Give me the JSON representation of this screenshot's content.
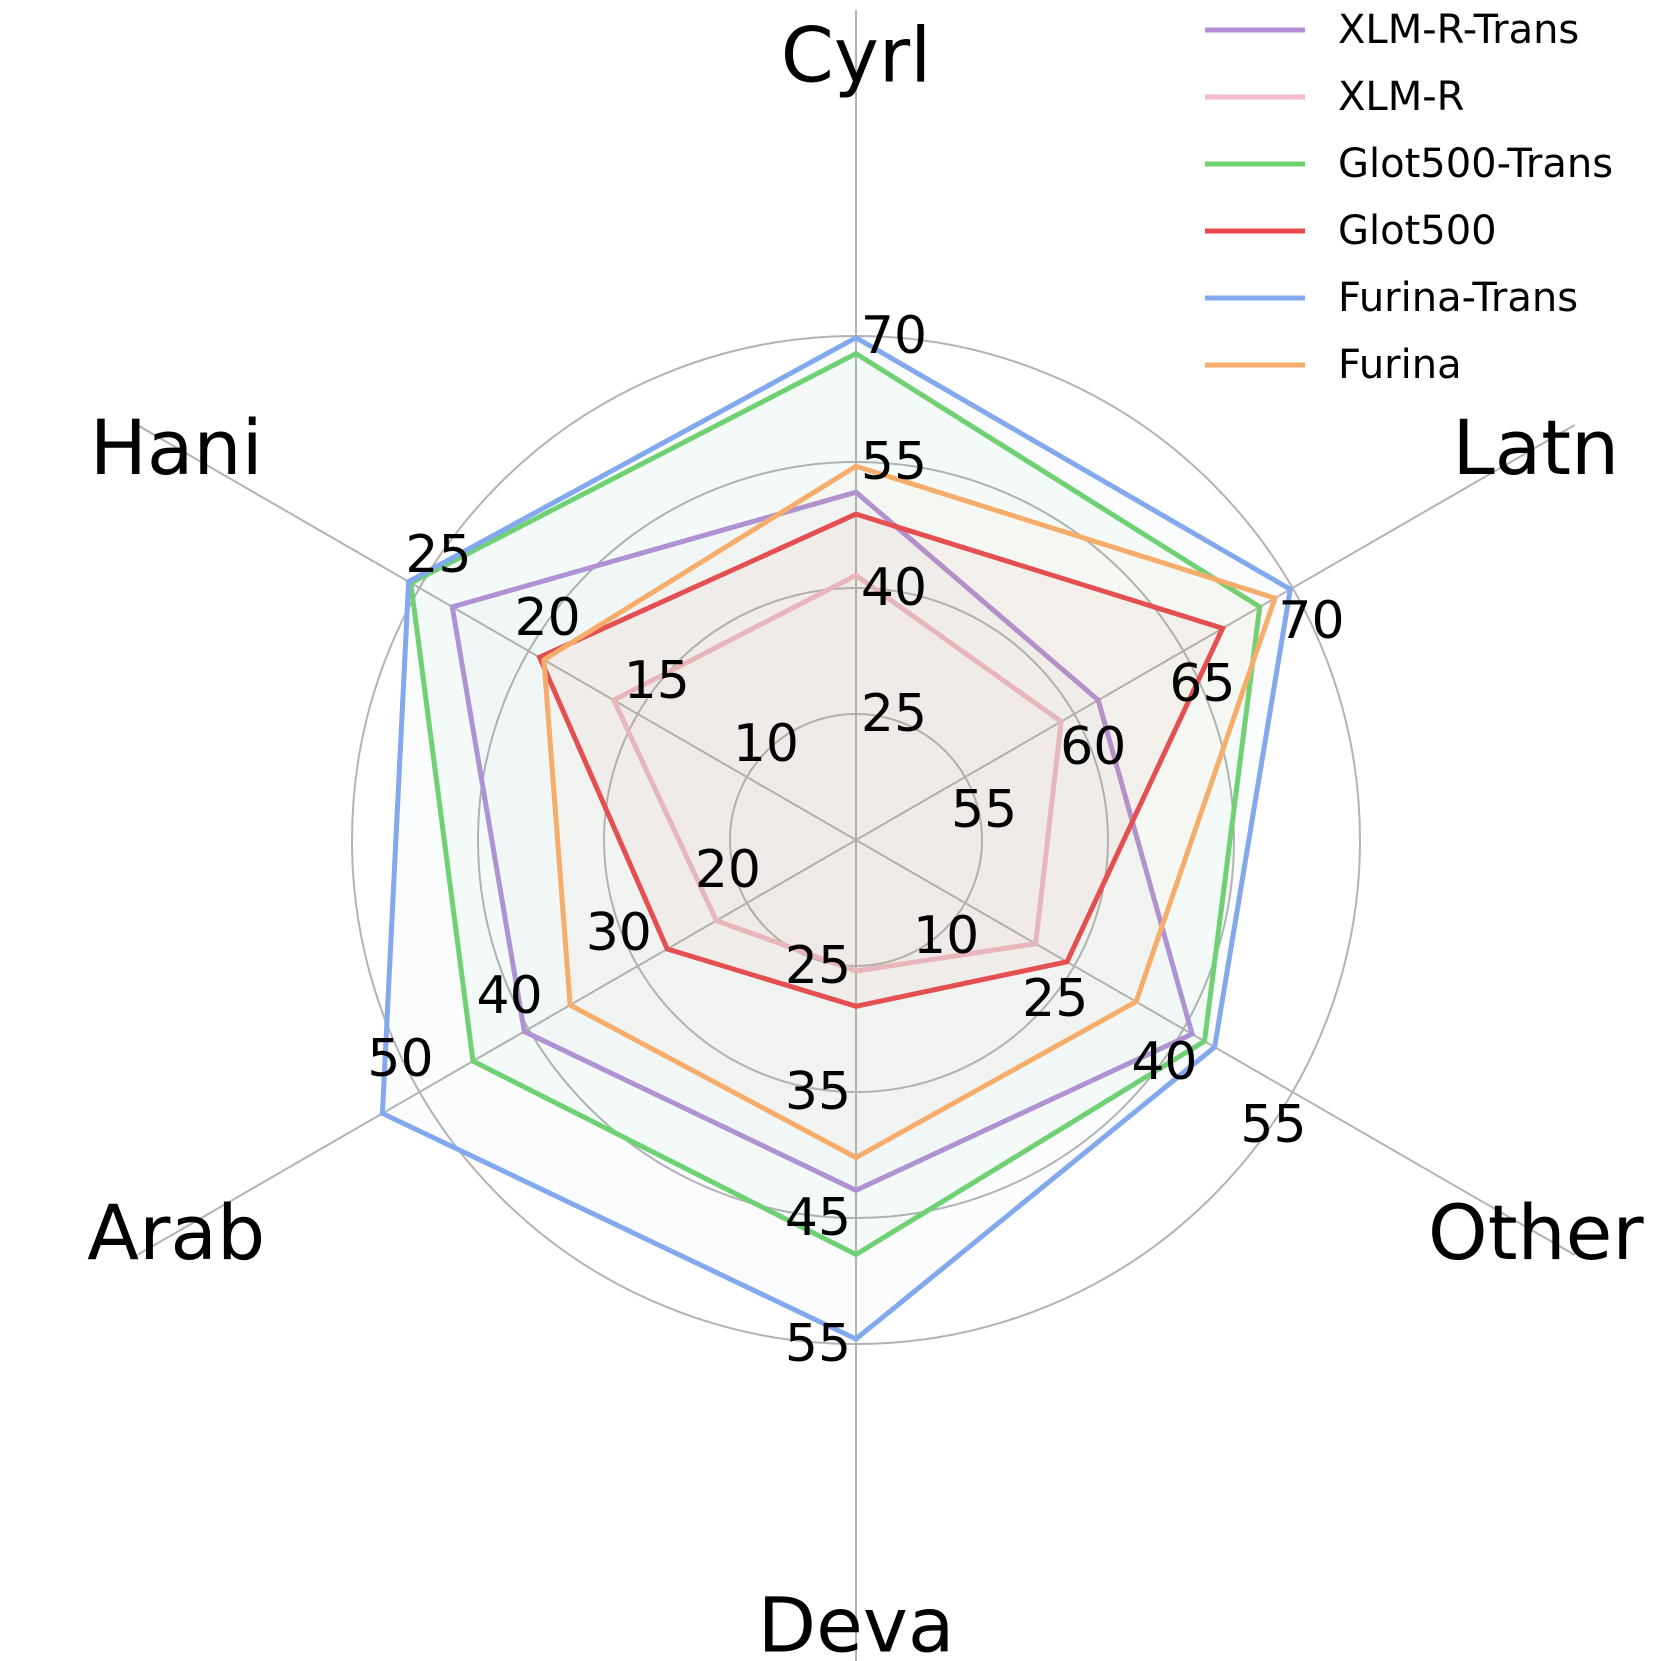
{
  "chart_data": {
    "type": "radar",
    "axes": [
      {
        "name": "Cyrl",
        "ticks": [
          "25",
          "40",
          "55",
          "70"
        ],
        "range": [
          10,
          85
        ]
      },
      {
        "name": "Latn",
        "ticks": [
          "55",
          "60",
          "65",
          "70"
        ],
        "range": [
          50,
          75
        ]
      },
      {
        "name": "Other",
        "ticks": [
          "10",
          "25",
          "40",
          "55"
        ],
        "range": [
          -5,
          70
        ]
      },
      {
        "name": "Deva",
        "ticks": [
          "25",
          "35",
          "45",
          "55"
        ],
        "range": [
          15,
          65
        ]
      },
      {
        "name": "Arab",
        "ticks": [
          "20",
          "30",
          "40",
          "50"
        ],
        "range": [
          10,
          60
        ]
      },
      {
        "name": "Hani",
        "ticks": [
          "10",
          "15",
          "20",
          "25"
        ],
        "range": [
          5,
          30
        ]
      }
    ],
    "series": [
      {
        "name": "XLM-R-Trans",
        "color": "#b48fd6",
        "values": [
          51.4,
          61.1,
          41.2,
          42.8,
          40.4,
          23.5
        ]
      },
      {
        "name": "XLM-R",
        "color": "#f2bcc8",
        "values": [
          41.5,
          59.4,
          19.7,
          25.4,
          22.8,
          16.1
        ]
      },
      {
        "name": "Glot500-Trans",
        "color": "#6fd36f",
        "values": [
          67.9,
          68.5,
          42.9,
          47.9,
          45.1,
          25.4
        ]
      },
      {
        "name": "Glot500",
        "color": "#e8474b",
        "values": [
          48.8,
          66.8,
          24.0,
          28.2,
          27.3,
          19.5
        ]
      },
      {
        "name": "Furina-Trans",
        "color": "#82a8ee",
        "values": [
          69.8,
          69.9,
          44.3,
          54.6,
          53.4,
          25.5
        ]
      },
      {
        "name": "Furina",
        "color": "#f6ad6b",
        "values": [
          54.5,
          69.2,
          33.5,
          40.2,
          36.2,
          19.3
        ]
      }
    ],
    "grid": true,
    "legend_position": "top-right"
  }
}
